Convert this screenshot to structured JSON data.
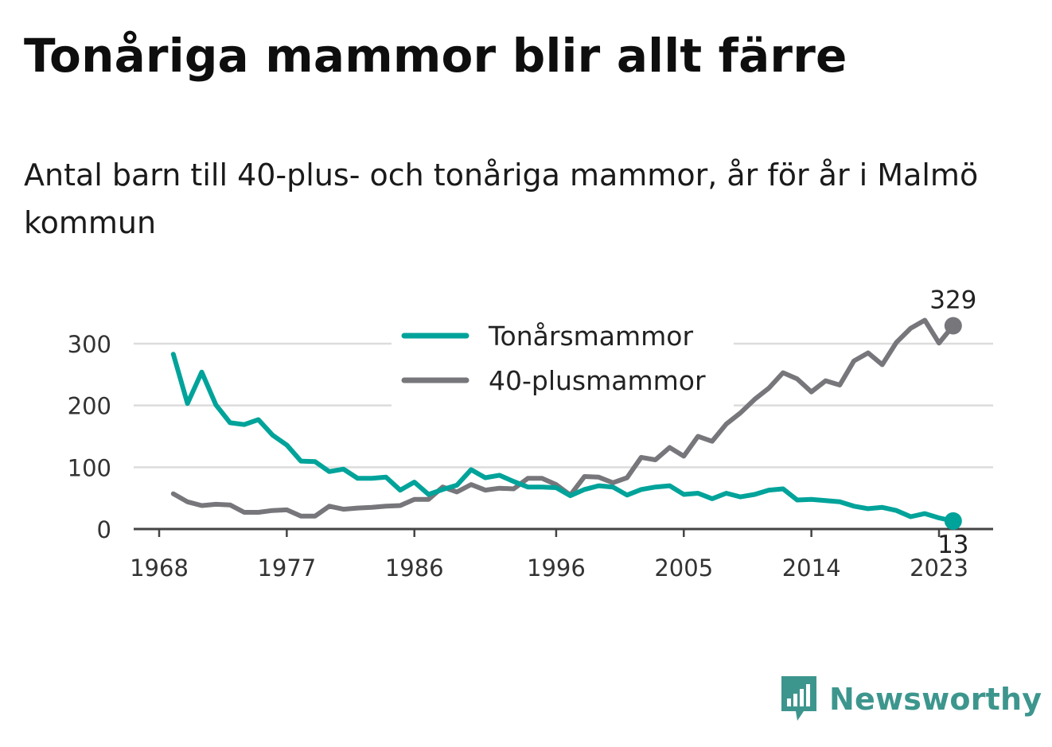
{
  "title": "Tonåriga mammor blir allt färre",
  "subtitle": "Antal barn till 40-plus- och tonåriga mammor, år för år i Malmö kommun",
  "brand": {
    "name": "Newsworthy",
    "icon": "newsworthy-logo-icon"
  },
  "colors": {
    "teen": "#00a39a",
    "forty_plus": "#77767b",
    "grid": "#dcdcdc",
    "axis": "#444444"
  },
  "chart_data": {
    "type": "line",
    "title": "Tonåriga mammor blir allt färre",
    "subtitle": "Antal barn till 40-plus- och tonåriga mammor, år för år i Malmö kommun",
    "xlabel": "",
    "ylabel": "",
    "x": [
      1969,
      1970,
      1971,
      1972,
      1973,
      1974,
      1975,
      1976,
      1977,
      1978,
      1979,
      1980,
      1981,
      1982,
      1983,
      1984,
      1985,
      1986,
      1987,
      1988,
      1989,
      1990,
      1991,
      1992,
      1993,
      1994,
      1995,
      1996,
      1997,
      1998,
      1999,
      2000,
      2001,
      2002,
      2003,
      2004,
      2005,
      2006,
      2007,
      2008,
      2009,
      2010,
      2011,
      2012,
      2013,
      2014,
      2015,
      2016,
      2017,
      2018,
      2019,
      2020,
      2021,
      2022,
      2023,
      2024
    ],
    "xticks": [
      1968,
      1977,
      1986,
      1996,
      2005,
      2014,
      2023
    ],
    "yticks": [
      0,
      100,
      200,
      300
    ],
    "ylim": [
      0,
      340
    ],
    "xlim": [
      1968,
      2025
    ],
    "grid": true,
    "legend_position": "top-center",
    "series": [
      {
        "name": "Tonårsmammor",
        "color": "#00a39a",
        "values": [
          283,
          203,
          254,
          201,
          172,
          169,
          177,
          152,
          136,
          110,
          109,
          93,
          97,
          82,
          82,
          84,
          63,
          76,
          56,
          64,
          71,
          96,
          83,
          87,
          77,
          68,
          68,
          67,
          54,
          64,
          70,
          68,
          55,
          64,
          68,
          70,
          56,
          58,
          49,
          58,
          52,
          56,
          63,
          65,
          47,
          48,
          46,
          44,
          37,
          33,
          35,
          30,
          20,
          25,
          18,
          13
        ],
        "end_label": "13"
      },
      {
        "name": "40-plusmammor",
        "color": "#77767b",
        "values": [
          57,
          44,
          38,
          40,
          39,
          27,
          27,
          30,
          31,
          21,
          21,
          37,
          32,
          34,
          35,
          37,
          38,
          48,
          48,
          68,
          60,
          72,
          63,
          66,
          65,
          82,
          82,
          72,
          55,
          85,
          84,
          75,
          83,
          116,
          112,
          132,
          118,
          150,
          142,
          170,
          188,
          210,
          228,
          253,
          243,
          222,
          240,
          233,
          272,
          285,
          266,
          302,
          325,
          338,
          301,
          329
        ],
        "end_label": "329"
      }
    ]
  }
}
